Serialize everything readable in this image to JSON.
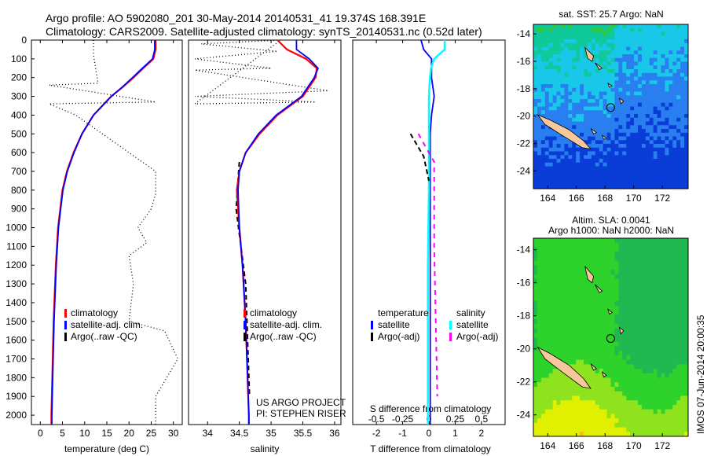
{
  "title_line1": "Argo profile: AO 5902080_201 30-May-2014 20140531_41 19.374S 168.391E",
  "title_line2": "Climatology: CARS2009. Satellite-adjusted climatology: synTS_20140531.nc (0.52d later)",
  "credit": "US ARGO PROJECT",
  "pi": "PI: STEPHEN RISER",
  "timestamp": "IMOS 07-Jun-2014 20:00:35",
  "colors": {
    "climatology": "#ff0000",
    "satellite": "#0000ff",
    "argo": "#000000",
    "sal_satellite": "#00ffff",
    "sal_argo": "#ff00ff",
    "land": "#f7c89b"
  },
  "chart_data": [
    {
      "type": "line",
      "id": "temperature",
      "xlabel": "temperature (deg C)",
      "ylabel": "",
      "xlim": [
        -2,
        32
      ],
      "ylim": [
        2050,
        0
      ],
      "xticks": [
        "0",
        "5",
        "10",
        "15",
        "20",
        "25",
        "30"
      ],
      "xtickvals": [
        0,
        5,
        10,
        15,
        20,
        25,
        30
      ],
      "yticks": [
        "0",
        "100",
        "200",
        "300",
        "400",
        "500",
        "600",
        "700",
        "800",
        "900",
        "1000",
        "1100",
        "1200",
        "1300",
        "1400",
        "1500",
        "1600",
        "1700",
        "1800",
        "1900",
        "2000"
      ],
      "legend": [
        "climatology",
        "satellite-adj. clim.",
        "Argo(..raw -QC)"
      ],
      "depth": [
        0,
        50,
        100,
        150,
        200,
        250,
        300,
        400,
        500,
        600,
        700,
        800,
        1000,
        1200,
        1500,
        2000,
        2050
      ],
      "series": [
        {
          "name": "climatology",
          "values": [
            26,
            26,
            25.5,
            23.2,
            21,
            18.6,
            16,
            12,
            9.4,
            7.5,
            6,
            5,
            4,
            3.5,
            3,
            2.5,
            2.5
          ]
        },
        {
          "name": "satellite-adj. clim.",
          "values": [
            25.8,
            25.8,
            25.3,
            23,
            20.8,
            18.5,
            16,
            12,
            9.4,
            7.6,
            6.1,
            5.1,
            4.1,
            3.6,
            3.1,
            2.6,
            2.6
          ]
        },
        {
          "name": "Argo(..raw -QC)",
          "depth": [
            0,
            80,
            230,
            240,
            330,
            340,
            400,
            700,
            820,
            900,
            1000,
            1080,
            1150,
            1300,
            1500,
            1550,
            1700,
            1900,
            2050
          ],
          "values": [
            12,
            12,
            13,
            2,
            26,
            2,
            8,
            26,
            26,
            25,
            22,
            24,
            20,
            21,
            20,
            28,
            31,
            26,
            26
          ]
        }
      ]
    },
    {
      "type": "line",
      "id": "salinity",
      "xlabel": "salinity",
      "xlim": [
        33.7,
        36.1
      ],
      "ylim": [
        2050,
        0
      ],
      "xticks": [
        "34",
        "34.5",
        "35",
        "35.5",
        "36"
      ],
      "xtickvals": [
        34,
        34.5,
        35,
        35.5,
        36
      ],
      "legend": [
        "climatology",
        "satellite-adj. clim.",
        "Argo(..raw -QC)"
      ],
      "depth": [
        0,
        50,
        100,
        150,
        200,
        300,
        400,
        500,
        600,
        700,
        800,
        1000,
        1200,
        1500,
        2000,
        2050
      ],
      "series": [
        {
          "name": "climatology",
          "values": [
            35.1,
            35.25,
            35.55,
            35.72,
            35.7,
            35.5,
            35.1,
            34.82,
            34.6,
            34.5,
            34.46,
            34.5,
            34.55,
            34.6,
            34.65,
            34.65
          ]
        },
        {
          "name": "satellite-adj. clim.",
          "values": [
            35.4,
            35.4,
            35.6,
            35.74,
            35.68,
            35.48,
            35.08,
            34.8,
            34.6,
            34.5,
            34.48,
            34.5,
            34.55,
            34.6,
            34.65,
            34.65
          ]
        },
        {
          "name": "Argo(..raw -QC)",
          "depth": [
            0,
            20,
            60,
            100,
            150,
            160,
            270,
            300,
            330,
            340,
            0
          ],
          "values": [
            35.15,
            33.9,
            35.1,
            33.8,
            35.0,
            33.8,
            35.9,
            33.8,
            35.7,
            33.8,
            35.15
          ]
        }
      ]
    },
    {
      "type": "line",
      "id": "difference",
      "xlabel": "T difference from climatology",
      "xlabel2": "S difference from climatology",
      "xlim": [
        -2.9,
        2.9
      ],
      "ylim": [
        2050,
        0
      ],
      "xticks": [
        "-2",
        "-1",
        "0",
        "1",
        "2"
      ],
      "xtickvals": [
        -2,
        -1,
        0,
        1,
        2
      ],
      "xticks2": [
        "-0.5",
        "-0.25",
        "0",
        "0.25",
        "0.5"
      ],
      "xtickvals2": [
        -0.5,
        -0.25,
        0,
        0.25,
        0.5
      ],
      "legend_titles": [
        "temperature",
        "salinity"
      ],
      "legend": [
        "satellite",
        "Argo(-adj)",
        "satellite",
        "Argo(-adj)"
      ],
      "depth": [
        0,
        50,
        100,
        150,
        200,
        300,
        400,
        500,
        800,
        1200,
        1600,
        2050
      ],
      "series": [
        {
          "name": "temperature satellite",
          "values": [
            -0.3,
            -0.2,
            0.1,
            0.1,
            0.1,
            0.2,
            0.1,
            0.05,
            0.05,
            0.05,
            0.05,
            0.05
          ]
        },
        {
          "name": "salinity satellite",
          "values": [
            0.15,
            0.15,
            0.05,
            0.02,
            0.01,
            0,
            0,
            0,
            0,
            -0.01,
            -0.01,
            -0.01
          ]
        }
      ]
    },
    {
      "type": "heatmap",
      "id": "sst_map",
      "title": "sat. SST: 25.7 Argo: NaN",
      "xticks": [
        "164",
        "166",
        "168",
        "170",
        "172"
      ],
      "yticks": [
        "-14",
        "-16",
        "-18",
        "-20",
        "-22",
        "-24"
      ],
      "xlim": [
        163,
        173.8
      ],
      "ylim": [
        -25.3,
        -13.3
      ],
      "argo_position": [
        168.391,
        -19.374
      ]
    },
    {
      "type": "heatmap",
      "id": "sla_map",
      "title": "Altim. SLA: 0.0041",
      "subtitle": "Argo h1000: NaN h2000: NaN",
      "xticks": [
        "164",
        "166",
        "168",
        "170",
        "172"
      ],
      "yticks": [
        "-14",
        "-16",
        "-18",
        "-20",
        "-22",
        "-24"
      ],
      "xlim": [
        163,
        173.8
      ],
      "ylim": [
        -25.3,
        -13.3
      ],
      "argo_position": [
        168.391,
        -19.374
      ]
    }
  ]
}
